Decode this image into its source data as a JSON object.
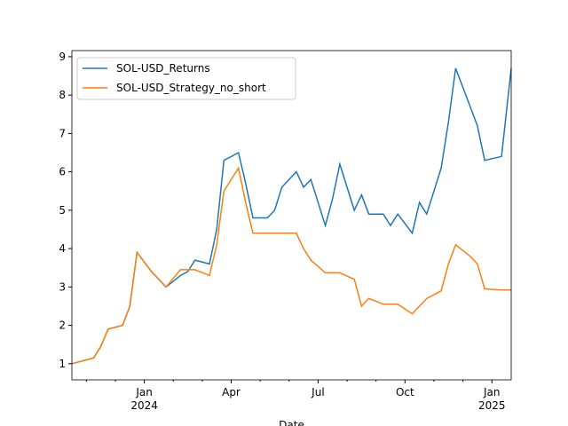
{
  "chart_data": {
    "type": "line",
    "xlabel": "Date",
    "x": [
      "2023-10",
      "2023-11",
      "2023-11",
      "2023-11",
      "2023-12",
      "2023-12",
      "2023-12",
      "2024-01",
      "2024-01",
      "2024-01",
      "2024-02",
      "2024-02",
      "2024-02",
      "2024-03",
      "2024-03",
      "2024-03",
      "2024-04",
      "2024-04",
      "2024-04",
      "2024-05",
      "2024-05",
      "2024-05",
      "2024-06",
      "2024-06",
      "2024-06",
      "2024-07",
      "2024-07",
      "2024-07",
      "2024-08",
      "2024-08",
      "2024-08",
      "2024-09",
      "2024-09",
      "2024-09",
      "2024-10",
      "2024-10",
      "2024-10",
      "2024-11",
      "2024-11",
      "2024-11",
      "2024-12",
      "2024-12",
      "2024-12",
      "2025-01",
      "2025-01"
    ],
    "series": [
      {
        "name": "SOL-USD_Returns",
        "color": "#1f77b4",
        "values": [
          1.0,
          1.15,
          1.45,
          1.9,
          2.0,
          2.5,
          3.9,
          3.4,
          3.2,
          3.0,
          3.3,
          3.4,
          3.7,
          3.6,
          4.5,
          6.3,
          6.5,
          5.7,
          4.8,
          4.8,
          5.0,
          5.6,
          6.0,
          5.6,
          5.8,
          4.6,
          5.3,
          6.2,
          5.0,
          5.4,
          4.9,
          4.9,
          4.6,
          4.9,
          4.4,
          5.2,
          4.9,
          6.1,
          7.3,
          8.7,
          7.7,
          7.2,
          6.3,
          6.4,
          8.7
        ]
      },
      {
        "name": "SOL-USD_Strategy_no_short",
        "color": "#ff7f0e",
        "values": [
          1.0,
          1.15,
          1.45,
          1.9,
          2.0,
          2.5,
          3.9,
          3.4,
          3.2,
          3.0,
          3.45,
          3.45,
          3.45,
          3.3,
          4.1,
          5.5,
          6.1,
          5.2,
          4.4,
          4.4,
          4.4,
          4.4,
          4.4,
          4.0,
          3.7,
          3.37,
          3.37,
          3.37,
          3.2,
          2.5,
          2.7,
          2.55,
          2.55,
          2.55,
          2.3,
          2.5,
          2.7,
          2.9,
          3.6,
          4.1,
          3.8,
          3.6,
          2.95,
          2.92,
          2.92
        ]
      }
    ],
    "xticks": [
      {
        "value": "2024-01",
        "label": "Jan\n2024"
      },
      {
        "value": "2024-04",
        "label": "Apr"
      },
      {
        "value": "2024-07",
        "label": "Jul"
      },
      {
        "value": "2024-10",
        "label": "Oct"
      },
      {
        "value": "2025-01",
        "label": "Jan\n2025"
      }
    ],
    "xminorticks": [
      "2023-11",
      "2023-12",
      "2024-02",
      "2024-03",
      "2024-05",
      "2024-06",
      "2024-08",
      "2024-09",
      "2024-11",
      "2024-12"
    ],
    "ylim": [
      0.58,
      9.16
    ],
    "yticks": [
      1,
      2,
      3,
      4,
      5,
      6,
      7,
      8,
      9
    ],
    "legend": "upper left"
  }
}
